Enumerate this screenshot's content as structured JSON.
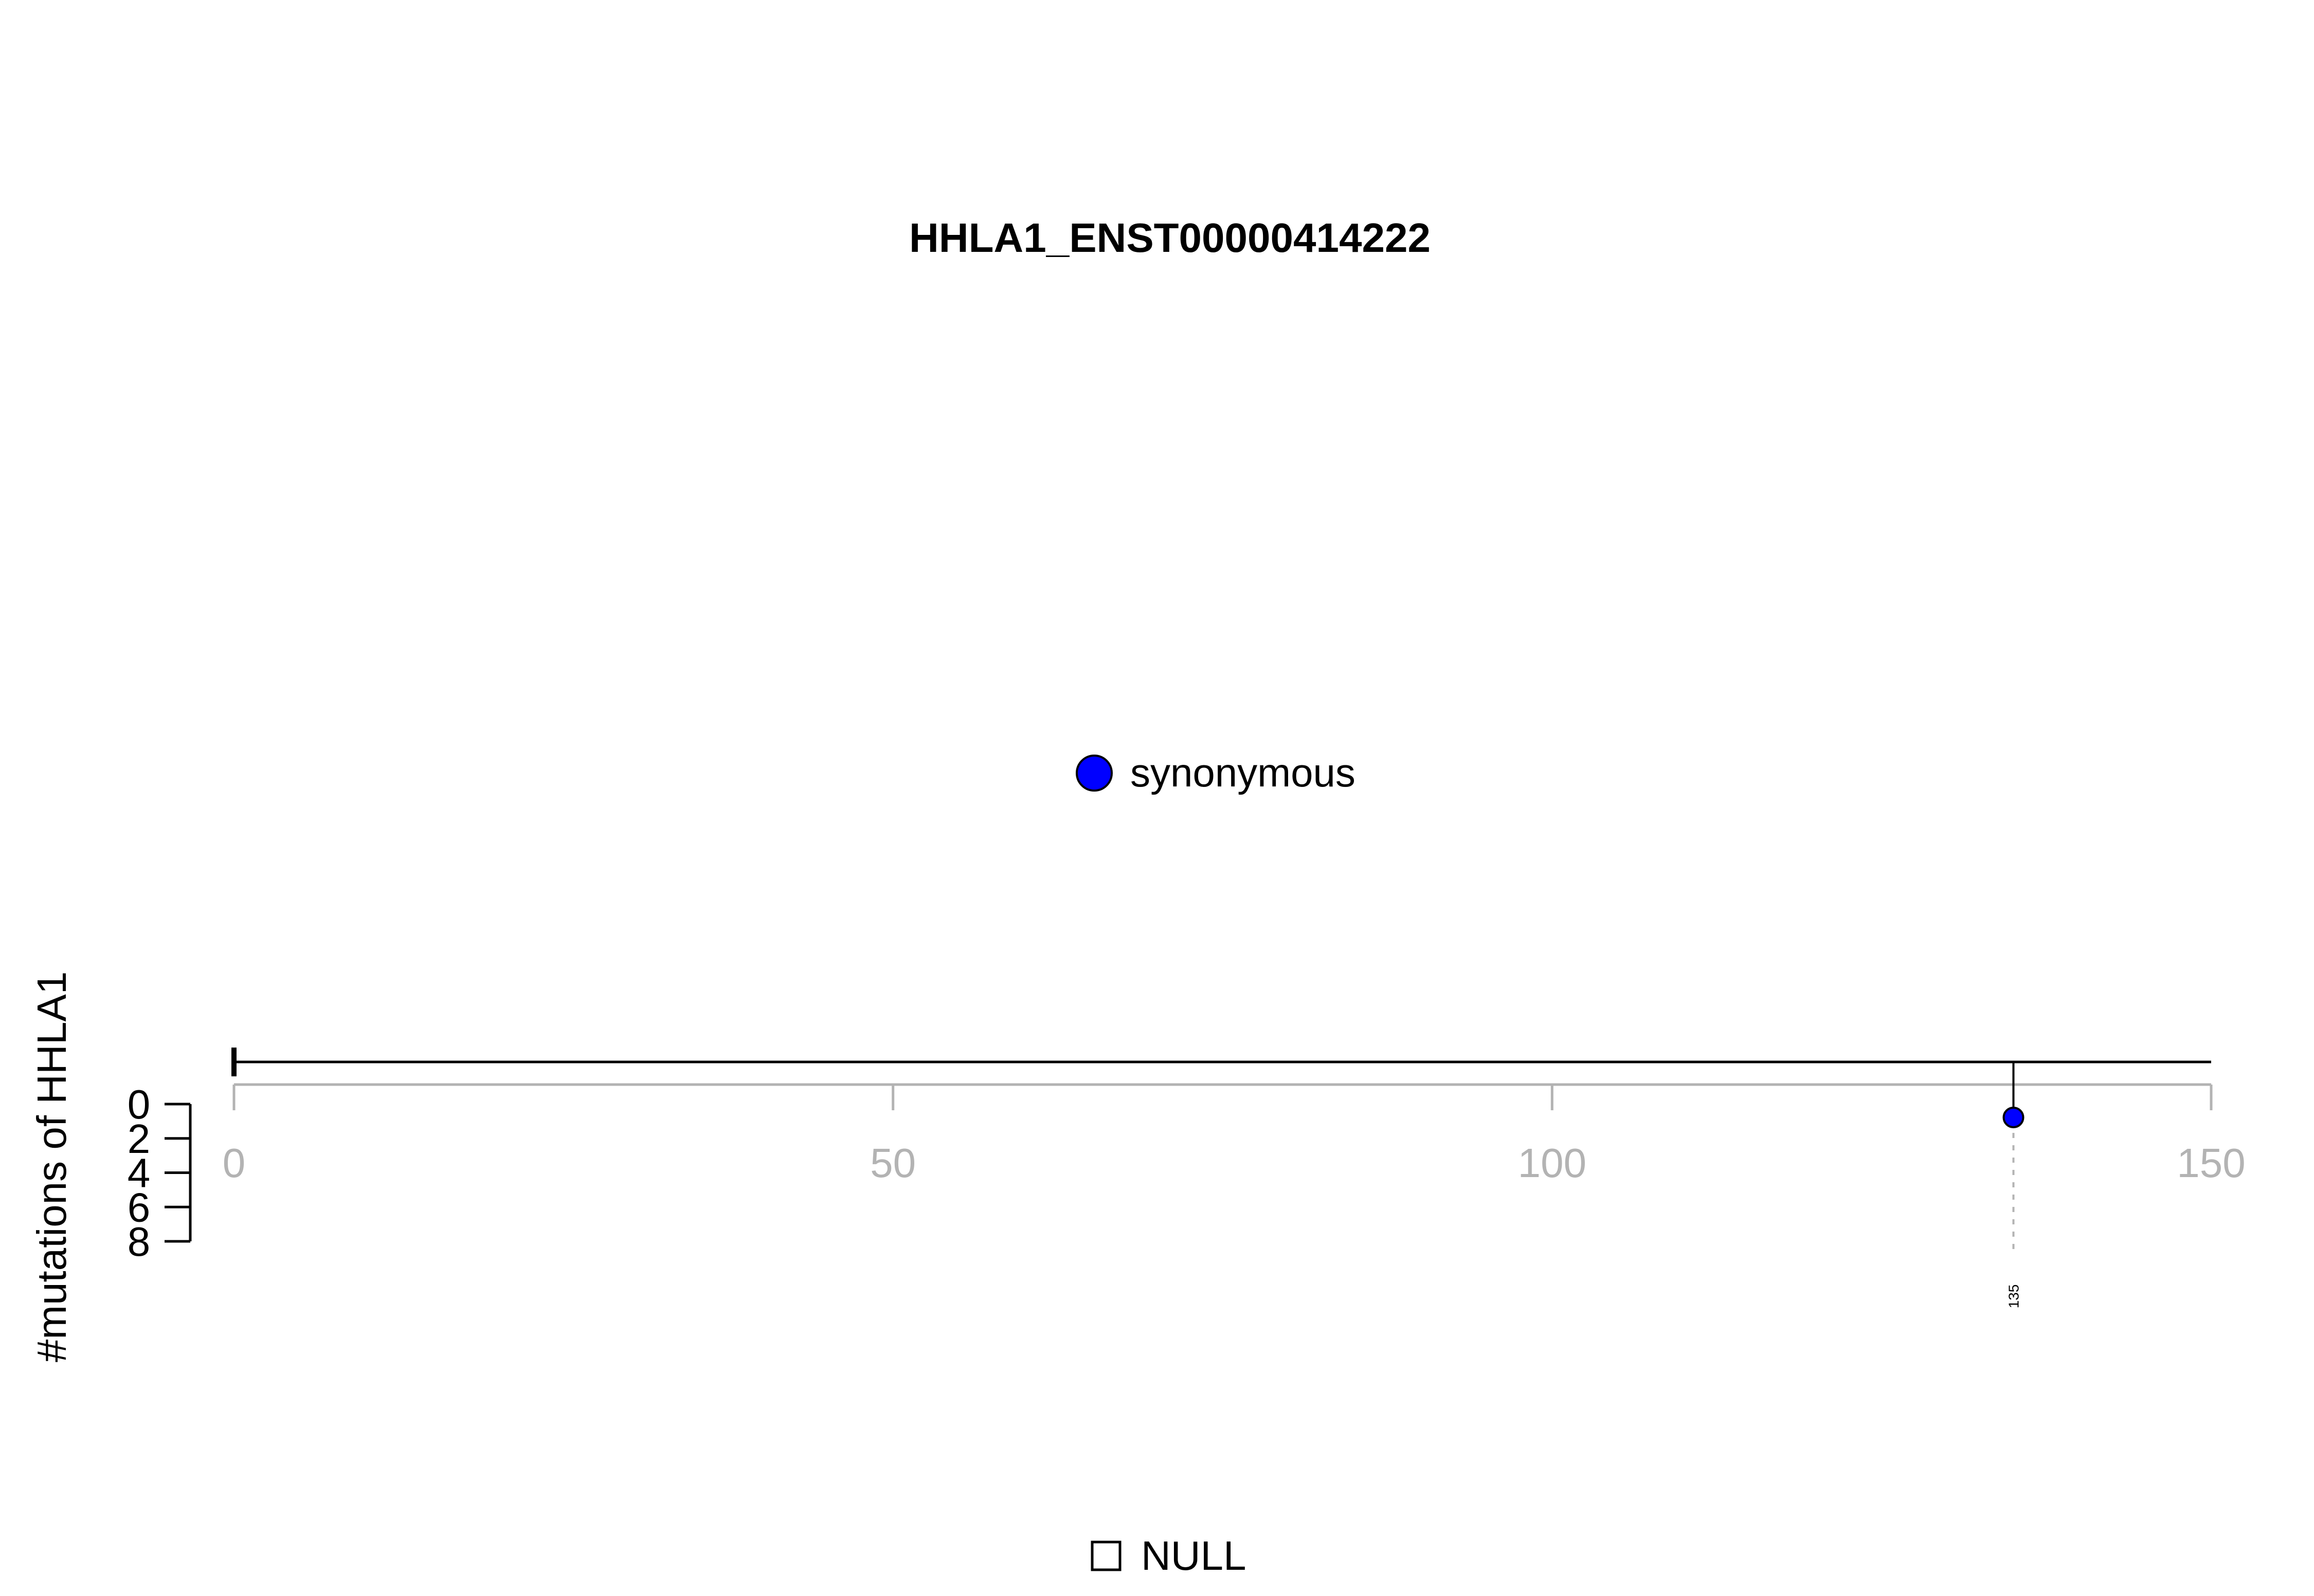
{
  "chart_data": {
    "type": "lollipop",
    "title": "HHLA1_ENST00000414222",
    "ylabel": "#mutations of HHLA1",
    "xlabel": "",
    "xlim": [
      0,
      150
    ],
    "x_ticks": [
      0,
      50,
      100,
      150
    ],
    "ylim": [
      0,
      8
    ],
    "y_ticks": [
      0,
      2,
      4,
      6,
      8
    ],
    "protein_length": 150,
    "legend": {
      "placement": "top-center",
      "entries": [
        {
          "label": "synonymous",
          "color": "#0000ff"
        }
      ]
    },
    "domain_legend": {
      "placement": "bottom-center",
      "entries": [
        {
          "label": "NULL"
        }
      ]
    },
    "mutations": [
      {
        "position": 135,
        "count": 1,
        "type": "synonymous",
        "label": "135",
        "color": "#0000ff"
      }
    ],
    "colors": {
      "axis_gray": "#b3b3b3",
      "axis_black": "#000000",
      "synonymous": "#0000ff"
    },
    "grid": false
  }
}
